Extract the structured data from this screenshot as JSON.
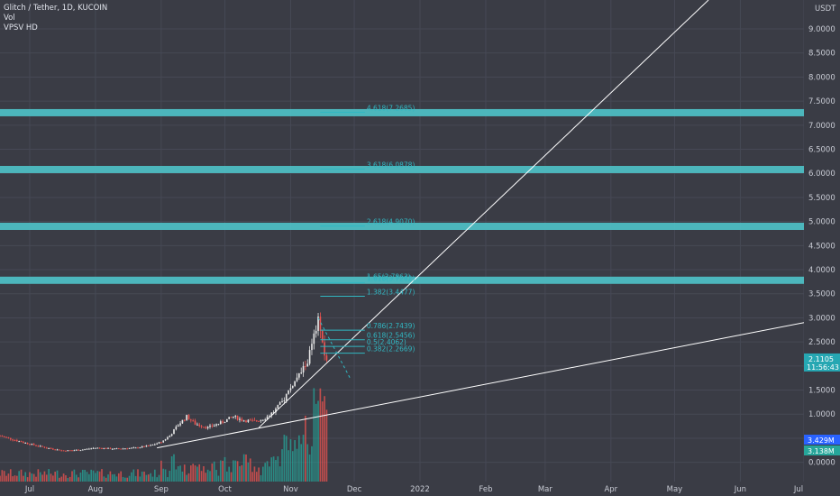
{
  "legend": {
    "symbol": "Glitch / Tether, 1D, KUCOIN",
    "volume": "Vol",
    "vpsv": "VPSV HD"
  },
  "colors": {
    "background": "#3a3c45",
    "grid": "#464955",
    "up": "#e6e6e6",
    "down": "#ef5350",
    "vol_up": "#26a69a",
    "vol_down": "#ef5350",
    "band": "#4fc3c9",
    "fib": "#31b7c2",
    "trendline": "#ffffff",
    "price_badge": "#26a7b2",
    "vol_badge_1": "#2962ff",
    "vol_badge_2": "#26a69a"
  },
  "chart_data": {
    "type": "candlestick",
    "y_axis_unit": "USDT",
    "ylim": [
      -0.4,
      9.6
    ],
    "y_ticks": [
      "9.0000",
      "8.5000",
      "8.0000",
      "7.5000",
      "7.0000",
      "6.5000",
      "6.0000",
      "5.5000",
      "5.0000",
      "4.5000",
      "4.0000",
      "3.5000",
      "3.0000",
      "2.5000",
      "2.0000",
      "1.5000",
      "1.0000",
      "0.5000",
      "0.0000"
    ],
    "y_tick_values": [
      9,
      8.5,
      8,
      7.5,
      7,
      6.5,
      6,
      5.5,
      5,
      4.5,
      4,
      3.5,
      3,
      2.5,
      2,
      1.5,
      1,
      0.5,
      0
    ],
    "x_ticks": [
      {
        "label": "Jul",
        "day": 0
      },
      {
        "label": "Aug",
        "day": 31
      },
      {
        "label": "Sep",
        "day": 62
      },
      {
        "label": "Oct",
        "day": 92
      },
      {
        "label": "Nov",
        "day": 123
      },
      {
        "label": "Dec",
        "day": 153
      },
      {
        "label": "2022",
        "day": 184
      },
      {
        "label": "Feb",
        "day": 215
      },
      {
        "label": "Mar",
        "day": 243
      },
      {
        "label": "Apr",
        "day": 274
      },
      {
        "label": "May",
        "day": 304
      },
      {
        "label": "Jun",
        "day": 335
      },
      {
        "label": "Jul",
        "day": 365
      }
    ],
    "x_range_days": [
      -14,
      365
    ],
    "close_series": [
      {
        "day": -14,
        "v": 0.55
      },
      {
        "day": -6,
        "v": 0.45
      },
      {
        "day": 0,
        "v": 0.38
      },
      {
        "day": 8,
        "v": 0.3
      },
      {
        "day": 16,
        "v": 0.24
      },
      {
        "day": 24,
        "v": 0.26
      },
      {
        "day": 31,
        "v": 0.3
      },
      {
        "day": 40,
        "v": 0.28
      },
      {
        "day": 50,
        "v": 0.3
      },
      {
        "day": 57,
        "v": 0.35
      },
      {
        "day": 62,
        "v": 0.42
      },
      {
        "day": 66,
        "v": 0.55
      },
      {
        "day": 70,
        "v": 0.78
      },
      {
        "day": 74,
        "v": 0.95
      },
      {
        "day": 78,
        "v": 0.8
      },
      {
        "day": 84,
        "v": 0.72
      },
      {
        "day": 90,
        "v": 0.82
      },
      {
        "day": 96,
        "v": 0.95
      },
      {
        "day": 100,
        "v": 0.88
      },
      {
        "day": 106,
        "v": 0.85
      },
      {
        "day": 111,
        "v": 0.92
      },
      {
        "day": 115,
        "v": 1.05
      },
      {
        "day": 119,
        "v": 1.25
      },
      {
        "day": 123,
        "v": 1.55
      },
      {
        "day": 127,
        "v": 1.8
      },
      {
        "day": 131,
        "v": 2.1
      },
      {
        "day": 134,
        "v": 2.6
      },
      {
        "day": 136,
        "v": 2.95
      },
      {
        "day": 137,
        "v": 2.75
      },
      {
        "day": 138,
        "v": 2.4
      },
      {
        "day": 140,
        "v": 2.11
      }
    ],
    "last_price": "2.1105",
    "countdown": "11:56:43",
    "volume_labels": [
      "3.429M",
      "3.138M"
    ],
    "horizontal_bands": [
      7.26,
      6.08,
      4.9,
      3.78
    ],
    "fib_labels": [
      {
        "text": "4.618(7.2685)",
        "value": 7.2685
      },
      {
        "text": "3.618(6.0878)",
        "value": 6.0878
      },
      {
        "text": "2.618(4.9070)",
        "value": 4.907
      },
      {
        "text": "1.618(3.7262)",
        "value": 3.7262
      },
      {
        "text": "1.382(3.4477)",
        "value": 3.4477
      },
      {
        "text": "0.786(2.7439)",
        "value": 2.7439
      },
      {
        "text": "0.618(2.5456)",
        "value": 2.5456
      },
      {
        "text": "0.5(2.4062)",
        "value": 2.4062
      },
      {
        "text": "0.382(2.2669)",
        "value": 2.2669
      }
    ],
    "fib_range": {
      "start_day": 137,
      "end_day": 158
    },
    "fib_extra_label": {
      "text": "1.65(3.7863)",
      "value": 3.7863
    },
    "trendlines": [
      {
        "from": {
          "day": 60,
          "v": 0.3
        },
        "to": {
          "day": 365,
          "v": 2.9
        }
      },
      {
        "from": {
          "day": 108,
          "v": 0.72
        },
        "to": {
          "day": 320,
          "v": 9.6
        }
      }
    ],
    "retrace_dashed": {
      "from": {
        "day": 136,
        "v": 3.0
      },
      "to": {
        "day": 151,
        "v": 1.75
      }
    }
  }
}
